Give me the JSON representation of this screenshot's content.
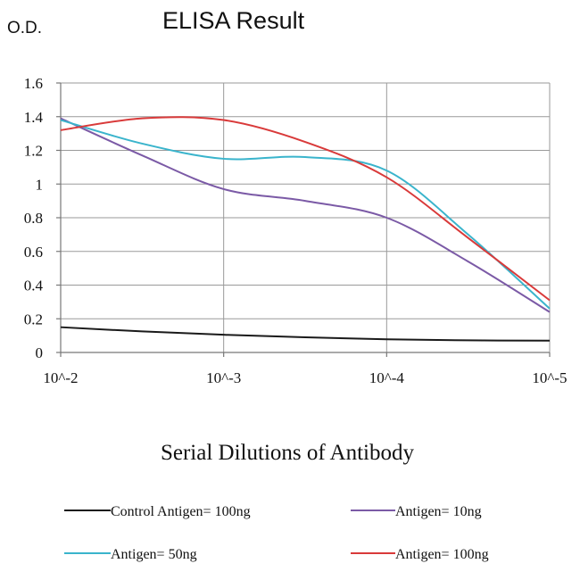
{
  "chart_data": {
    "type": "line",
    "title": "ELISA Result",
    "ylabel": "O.D.",
    "xlabel": "Serial Dilutions of Antibody",
    "x": [
      "10^-2",
      "10^-3",
      "10^-4",
      "10^-5"
    ],
    "ylim": [
      0,
      1.6
    ],
    "yticks": [
      "0",
      "0.2",
      "0.4",
      "0.6",
      "0.8",
      "1",
      "1.2",
      "1.4",
      "1.6"
    ],
    "grid": true,
    "legend_position": "bottom",
    "series": [
      {
        "name": "Control Antigen= 100ng",
        "color": "#1a1a1a",
        "points": [
          [
            0,
            0.15
          ],
          [
            0.5,
            0.125
          ],
          [
            1,
            0.105
          ],
          [
            1.5,
            0.09
          ],
          [
            2,
            0.078
          ],
          [
            2.5,
            0.072
          ],
          [
            3,
            0.07
          ]
        ]
      },
      {
        "name": "Antigen= 10ng",
        "color": "#7b5aa6",
        "points": [
          [
            0,
            1.39
          ],
          [
            0.5,
            1.17
          ],
          [
            1,
            0.97
          ],
          [
            1.5,
            0.9
          ],
          [
            2,
            0.8
          ],
          [
            2.5,
            0.54
          ],
          [
            3,
            0.24
          ]
        ]
      },
      {
        "name": "Antigen= 50ng",
        "color": "#3ab4cc",
        "points": [
          [
            0,
            1.38
          ],
          [
            0.5,
            1.24
          ],
          [
            1,
            1.15
          ],
          [
            1.5,
            1.16
          ],
          [
            2,
            1.08
          ],
          [
            2.5,
            0.7
          ],
          [
            3,
            0.26
          ]
        ]
      },
      {
        "name": "Antigen= 100ng",
        "color": "#d93a3a",
        "points": [
          [
            0,
            1.32
          ],
          [
            0.5,
            1.39
          ],
          [
            1,
            1.38
          ],
          [
            1.5,
            1.25
          ],
          [
            2,
            1.04
          ],
          [
            2.5,
            0.68
          ],
          [
            3,
            0.31
          ]
        ]
      }
    ]
  }
}
